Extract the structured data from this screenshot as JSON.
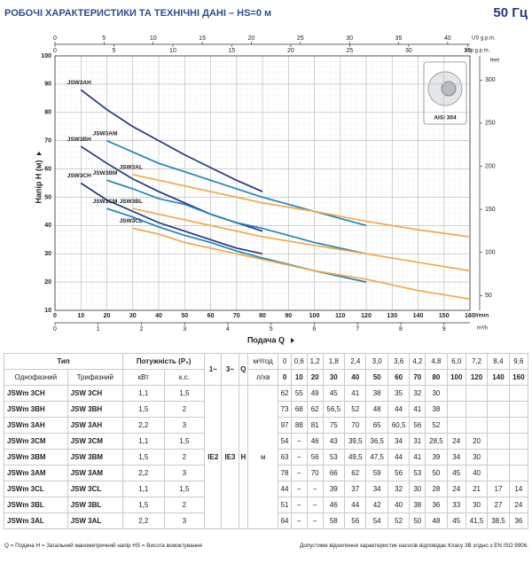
{
  "header": {
    "title": "РОБОЧІ ХАРАКТЕРИСТИКИ ТА ТЕХНІЧНІ ДАНІ  –  HS=0 м",
    "frequency": "50 Гц"
  },
  "chart_data": {
    "type": "line",
    "x_label": "Подача Q",
    "x_unit": "l/min",
    "y_label": "Напір  H (м)",
    "inset_label": "AISI 304",
    "xlim": [
      0,
      160
    ],
    "xticks": [
      0,
      10,
      20,
      30,
      40,
      50,
      60,
      70,
      80,
      90,
      100,
      110,
      120,
      130,
      140,
      150,
      160
    ],
    "ylim": [
      10,
      100
    ],
    "yticks": [
      10,
      20,
      30,
      40,
      50,
      60,
      70,
      80,
      90,
      100
    ],
    "grid": true,
    "top_axis_us": {
      "unit": "US g.p.m.",
      "lim": [
        0,
        42.27
      ],
      "ticks": [
        0,
        5,
        10,
        15,
        20,
        25,
        30,
        35,
        40
      ]
    },
    "top_axis_imp": {
      "unit": "Imp g.p.m.",
      "lim": [
        0,
        35.2
      ],
      "ticks": [
        0,
        5,
        10,
        15,
        20,
        25,
        30,
        35
      ]
    },
    "right_axis_feet": {
      "unit": "feet",
      "lim": [
        32.81,
        328.08
      ],
      "ticks": [
        50,
        100,
        150,
        200,
        250,
        300
      ]
    },
    "bottom_axis_m3h": {
      "unit": "m³/h",
      "lim": [
        0,
        9.6
      ],
      "ticks": [
        0,
        1,
        2,
        3,
        4,
        5,
        6,
        7,
        8,
        9
      ]
    },
    "x": [
      10,
      20,
      30,
      40,
      50,
      60,
      70,
      80,
      100,
      120,
      140,
      160
    ],
    "series": [
      {
        "name": "JSW3AH",
        "color": "#243a7c",
        "values": [
          88,
          81,
          75,
          70,
          65,
          60.5,
          56,
          52,
          null,
          null,
          null,
          null
        ]
      },
      {
        "name": "JSW3BH",
        "color": "#243a7c",
        "values": [
          68,
          62,
          56.5,
          52,
          48,
          44,
          41,
          38,
          null,
          null,
          null,
          null
        ]
      },
      {
        "name": "JSW3CH",
        "color": "#243a7c",
        "values": [
          55,
          49,
          45,
          41,
          38,
          35,
          32,
          30,
          null,
          null,
          null,
          null
        ]
      },
      {
        "name": "JSW3AM",
        "color": "#1f86b8",
        "values": [
          null,
          70,
          66,
          62,
          59,
          56,
          53,
          50,
          45,
          40,
          null,
          null
        ]
      },
      {
        "name": "JSW3BM",
        "color": "#1f86b8",
        "values": [
          null,
          56,
          53,
          49.5,
          47.5,
          44,
          41,
          39,
          34,
          30,
          null,
          null
        ]
      },
      {
        "name": "JSW3CM",
        "color": "#1f86b8",
        "values": [
          null,
          46,
          43,
          39.5,
          36.5,
          34,
          31,
          28.5,
          24,
          20,
          null,
          null
        ]
      },
      {
        "name": "JSW3AL",
        "color": "#f4a748",
        "values": [
          null,
          null,
          58,
          56,
          54,
          52,
          50,
          48,
          45,
          41.5,
          38.5,
          36
        ]
      },
      {
        "name": "JSW3BL",
        "color": "#f4a748",
        "values": [
          null,
          null,
          46,
          44,
          42,
          40,
          38,
          36,
          33,
          30,
          27,
          24
        ]
      },
      {
        "name": "JSW3CL",
        "color": "#f4a748",
        "values": [
          null,
          null,
          39,
          37,
          34,
          32,
          30,
          28,
          24,
          21,
          17,
          14
        ]
      }
    ]
  },
  "table": {
    "type": "Тип",
    "power": "Потужність (P₂)",
    "single_phase": "Однофазний",
    "three_phase": "Трифазний",
    "kw": "кВт",
    "hp": "к.с.",
    "phase1": "1~",
    "phase3": "3~",
    "q": "Q",
    "q_unit_m3h": "м³/год",
    "q_unit_lmin": "л/хв",
    "q_m3h": [
      "0",
      "0,6",
      "1,2",
      "1,8",
      "2,4",
      "3,0",
      "3,6",
      "4,2",
      "4,8",
      "6,0",
      "7,2",
      "8,4",
      "9,6"
    ],
    "q_lmin": [
      "0",
      "10",
      "20",
      "30",
      "40",
      "50",
      "60",
      "70",
      "80",
      "100",
      "120",
      "140",
      "160"
    ],
    "efficiency_1": "IE2",
    "efficiency_3": "IE3",
    "h": "H",
    "h_unit": "м",
    "rows": [
      [
        "JSWm 3CH",
        "JSW 3CH",
        "1,1",
        "1,5",
        "62",
        "55",
        "49",
        "45",
        "41",
        "38",
        "35",
        "32",
        "30"
      ],
      [
        "JSWm 3BH",
        "JSW 3BH",
        "1,5",
        "2",
        "73",
        "68",
        "62",
        "56,5",
        "52",
        "48",
        "44",
        "41",
        "38"
      ],
      [
        "JSWm 3AH",
        "JSW 3AH",
        "2,2",
        "3",
        "97",
        "88",
        "81",
        "75",
        "70",
        "65",
        "60,5",
        "56",
        "52"
      ],
      [
        "JSWm 3CM",
        "JSW 3CM",
        "1,1",
        "1,5",
        "54",
        "–",
        "46",
        "43",
        "39,5",
        "36,5",
        "34",
        "31",
        "28,5",
        "24",
        "20"
      ],
      [
        "JSWm 3BM",
        "JSW 3BM",
        "1,5",
        "2",
        "63",
        "–",
        "56",
        "53",
        "49,5",
        "47,5",
        "44",
        "41",
        "39",
        "34",
        "30"
      ],
      [
        "JSWm 3AM",
        "JSW 3AM",
        "2,2",
        "3",
        "78",
        "–",
        "70",
        "66",
        "62",
        "59",
        "56",
        "53",
        "50",
        "45",
        "40"
      ],
      [
        "JSWm 3CL",
        "JSW 3CL",
        "1,1",
        "1,5",
        "44",
        "–",
        "–",
        "39",
        "37",
        "34",
        "32",
        "30",
        "28",
        "24",
        "21",
        "17",
        "14"
      ],
      [
        "JSWm 3BL",
        "JSW 3BL",
        "1,5",
        "2",
        "51",
        "–",
        "–",
        "46",
        "44",
        "42",
        "40",
        "38",
        "36",
        "33",
        "30",
        "27",
        "24"
      ],
      [
        "JSWm 3AL",
        "JSW 3AL",
        "2,2",
        "3",
        "64",
        "–",
        "–",
        "58",
        "56",
        "54",
        "52",
        "50",
        "48",
        "45",
        "41,5",
        "38,5",
        "36"
      ]
    ]
  },
  "footnotes": {
    "left": "Q = Подача  H = Загальний манометричний напір  HS = Висота всмоктування",
    "right": "Допустиме відхилення характеристик насосів відповідає Класу 3B згідно з EN ISO 9906."
  }
}
